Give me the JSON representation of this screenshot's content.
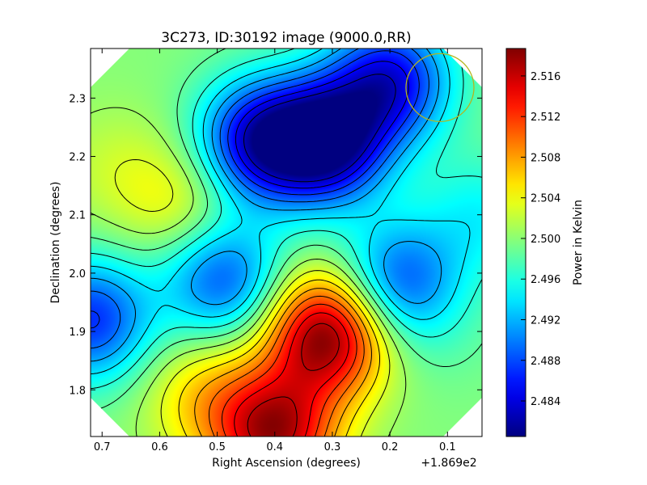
{
  "chart_data": {
    "type": "heatmap",
    "title": "3C273, ID:30192 image (9000.0,RR)",
    "xlabel": "Right Ascension (degrees)",
    "ylabel": "Declination (degrees)",
    "x_offset_label": "+1.869e2",
    "xlim": [
      0.72,
      0.04
    ],
    "ylim": [
      1.72,
      2.385
    ],
    "x_ticks": [
      0.7,
      0.6,
      0.5,
      0.4,
      0.3,
      0.2,
      0.1
    ],
    "x_tick_labels": [
      "0.7",
      "0.6",
      "0.5",
      "0.4",
      "0.3",
      "0.2",
      "0.1"
    ],
    "y_ticks": [
      1.8,
      1.9,
      2.0,
      2.1,
      2.2,
      2.3
    ],
    "y_tick_labels": [
      "1.8",
      "1.9",
      "2.0",
      "2.1",
      "2.2",
      "2.3"
    ],
    "colorbar": {
      "label": "Power in Kelvin",
      "range": [
        2.4805,
        2.5187
      ],
      "ticks": [
        2.484,
        2.488,
        2.492,
        2.496,
        2.5,
        2.504,
        2.508,
        2.512,
        2.516
      ],
      "tick_labels": [
        "2.484",
        "2.488",
        "2.492",
        "2.496",
        "2.500",
        "2.504",
        "2.508",
        "2.512",
        "2.516"
      ],
      "colormap": "jet"
    },
    "background_level": 2.4998,
    "features": [
      {
        "ra": 0.31,
        "dec": 1.895,
        "value": 2.5187
      },
      {
        "ra": 0.4,
        "dec": 1.725,
        "value": 2.5165
      },
      {
        "ra": 0.31,
        "dec": 2.225,
        "value": 2.4805
      },
      {
        "ra": 0.43,
        "dec": 2.225,
        "value": 2.4845
      },
      {
        "ra": 0.2,
        "dec": 2.33,
        "value": 2.485
      },
      {
        "ra": 0.72,
        "dec": 1.92,
        "value": 2.487
      },
      {
        "ra": 0.49,
        "dec": 1.99,
        "value": 2.4885
      },
      {
        "ra": 0.185,
        "dec": 1.985,
        "value": 2.4885
      },
      {
        "ra": 0.52,
        "dec": 1.79,
        "value": 2.5055
      },
      {
        "ra": 0.56,
        "dec": 2.12,
        "value": 2.5045
      },
      {
        "ra": 0.68,
        "dec": 2.18,
        "value": 2.502
      },
      {
        "ra": 0.04,
        "dec": 2.1,
        "value": 2.495
      },
      {
        "ra": 0.09,
        "dec": 1.88,
        "value": 2.499
      }
    ],
    "contour_count": 16,
    "beam_circle": {
      "ra": 0.113,
      "dec": 2.318,
      "color": "#b5b51e"
    }
  }
}
